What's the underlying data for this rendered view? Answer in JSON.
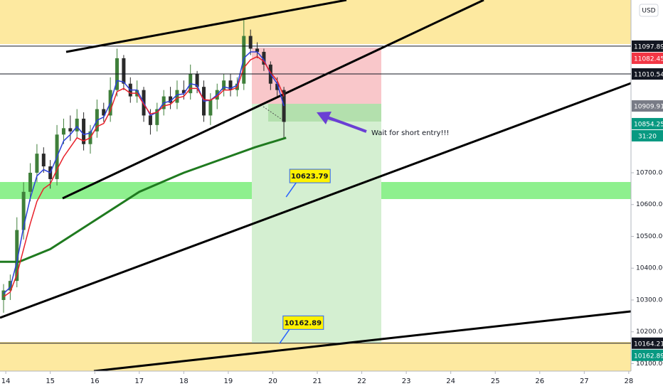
{
  "chart_data": {
    "type": "candlestick",
    "currency": "USD",
    "xlim": [
      13.87,
      28.05
    ],
    "ylim": [
      10076.5,
      11243
    ],
    "xticks": [
      14,
      15,
      16,
      17,
      18,
      19,
      20,
      21,
      22,
      23,
      24,
      25,
      26,
      27,
      28
    ],
    "yticks": [
      {
        "value": 10100,
        "label": "10100.00"
      },
      {
        "value": 10200,
        "label": "10200.00"
      },
      {
        "value": 10300,
        "label": "10300.00"
      },
      {
        "value": 10400,
        "label": "10400.00"
      },
      {
        "value": 10500,
        "label": "10500.00"
      },
      {
        "value": 10600,
        "label": "10600.00"
      },
      {
        "value": 10700,
        "label": "10700.00"
      }
    ],
    "up_color": "#3f7f3a",
    "down_color": "#2a2a2a",
    "x": [
      13.95,
      14.1,
      14.25,
      14.4,
      14.55,
      14.7,
      14.85,
      15.0,
      15.15,
      15.3,
      15.45,
      15.6,
      15.75,
      15.9,
      16.05,
      16.2,
      16.35,
      16.5,
      16.65,
      16.8,
      16.95,
      17.1,
      17.25,
      17.4,
      17.55,
      17.7,
      17.85,
      18.0,
      18.15,
      18.3,
      18.45,
      18.6,
      18.75,
      18.9,
      19.05,
      19.2,
      19.35,
      19.5,
      19.65,
      19.8,
      19.95,
      20.1,
      20.25
    ],
    "open": [
      10300,
      10330,
      10360,
      10520,
      10640,
      10700,
      10760,
      10720,
      10680,
      10820,
      10840,
      10830,
      10870,
      10790,
      10830,
      10900,
      10880,
      10960,
      11060,
      10980,
      10940,
      10960,
      10880,
      10850,
      10900,
      10940,
      10920,
      10960,
      10950,
      11010,
      10970,
      10880,
      10930,
      10960,
      10990,
      10960,
      10980,
      11130,
      11090,
      11080,
      11040,
      10980,
      10960
    ],
    "high": [
      10350,
      10380,
      10560,
      10670,
      10730,
      10790,
      10780,
      10740,
      10850,
      10870,
      10880,
      10900,
      10890,
      10850,
      10930,
      10920,
      11000,
      11090,
      11070,
      11000,
      10990,
      10970,
      10900,
      10920,
      10960,
      10970,
      10990,
      10990,
      11040,
      11020,
      10990,
      10950,
      10980,
      11010,
      11010,
      11000,
      11180,
      11150,
      11110,
      11090,
      11050,
      11000,
      10970
    ],
    "low": [
      10260,
      10300,
      10340,
      10490,
      10610,
      10670,
      10700,
      10650,
      10660,
      10790,
      10800,
      10810,
      10770,
      10760,
      10810,
      10860,
      10860,
      10940,
      10960,
      10920,
      10920,
      10860,
      10820,
      10830,
      10880,
      10900,
      10900,
      10930,
      10930,
      10950,
      10860,
      10850,
      10900,
      10940,
      10940,
      10940,
      10960,
      11070,
      11060,
      11020,
      10960,
      10940,
      10810
    ],
    "close": [
      10330,
      10360,
      10520,
      10640,
      10700,
      10760,
      10720,
      10680,
      10820,
      10840,
      10830,
      10870,
      10790,
      10830,
      10900,
      10880,
      10960,
      11060,
      10980,
      10940,
      10960,
      10880,
      10850,
      10900,
      10940,
      10920,
      10960,
      10950,
      11010,
      10970,
      10880,
      10930,
      10960,
      10990,
      10960,
      10980,
      11130,
      11090,
      11080,
      11040,
      10980,
      10960,
      10860
    ],
    "lines": [
      {
        "color": "#2b3fd8",
        "values": [
          10320,
          10340,
          10420,
          10530,
          10620,
          10690,
          10710,
          10700,
          10750,
          10800,
          10820,
          10845,
          10820,
          10825,
          10865,
          10875,
          10920,
          10990,
          10985,
          10960,
          10960,
          10920,
          10880,
          10890,
          10920,
          10925,
          10945,
          10948,
          10980,
          10975,
          10925,
          10928,
          10945,
          10970,
          10965,
          10975,
          11060,
          11080,
          11080,
          11055,
          11010,
          10980,
          10910
        ]
      },
      {
        "color": "#e8202a",
        "values": [
          10310,
          10325,
          10380,
          10460,
          10540,
          10610,
          10650,
          10665,
          10710,
          10750,
          10780,
          10810,
          10800,
          10810,
          10845,
          10855,
          10895,
          10955,
          10965,
          10950,
          10950,
          10915,
          10885,
          10890,
          10910,
          10915,
          10935,
          10940,
          10965,
          10965,
          10930,
          10928,
          10940,
          10960,
          10960,
          10968,
          11030,
          11055,
          11065,
          11050,
          11015,
          10990,
          10940
        ]
      }
    ],
    "ma": {
      "color": "#1f7a1f",
      "x": [
        13.87,
        14.3,
        15.0,
        16.0,
        17.0,
        18.0,
        19.0,
        19.6,
        20.3
      ],
      "values": [
        10420,
        10420,
        10460,
        10550,
        10640,
        10700,
        10750,
        10780,
        10810
      ]
    },
    "price_tags": [
      {
        "value": 11097.89,
        "color": "#131722",
        "line": true
      },
      {
        "value": 11082.45,
        "color": "#f23645"
      },
      {
        "value": 11010.54,
        "color": "#131722",
        "line": true
      },
      {
        "value": 10909.91,
        "color": "#787b86"
      },
      {
        "value": 10854.25,
        "color": "#089981"
      },
      {
        "value": 10164.21,
        "color": "#131722",
        "line": true
      },
      {
        "value": 10162.89,
        "color": "#089981"
      }
    ],
    "countdown": "31:20",
    "callouts": [
      {
        "value": 10623.79,
        "x": 20.3
      },
      {
        "value": 10162.89,
        "x": 20.15
      }
    ],
    "note": "Wait for short entry!!!"
  }
}
